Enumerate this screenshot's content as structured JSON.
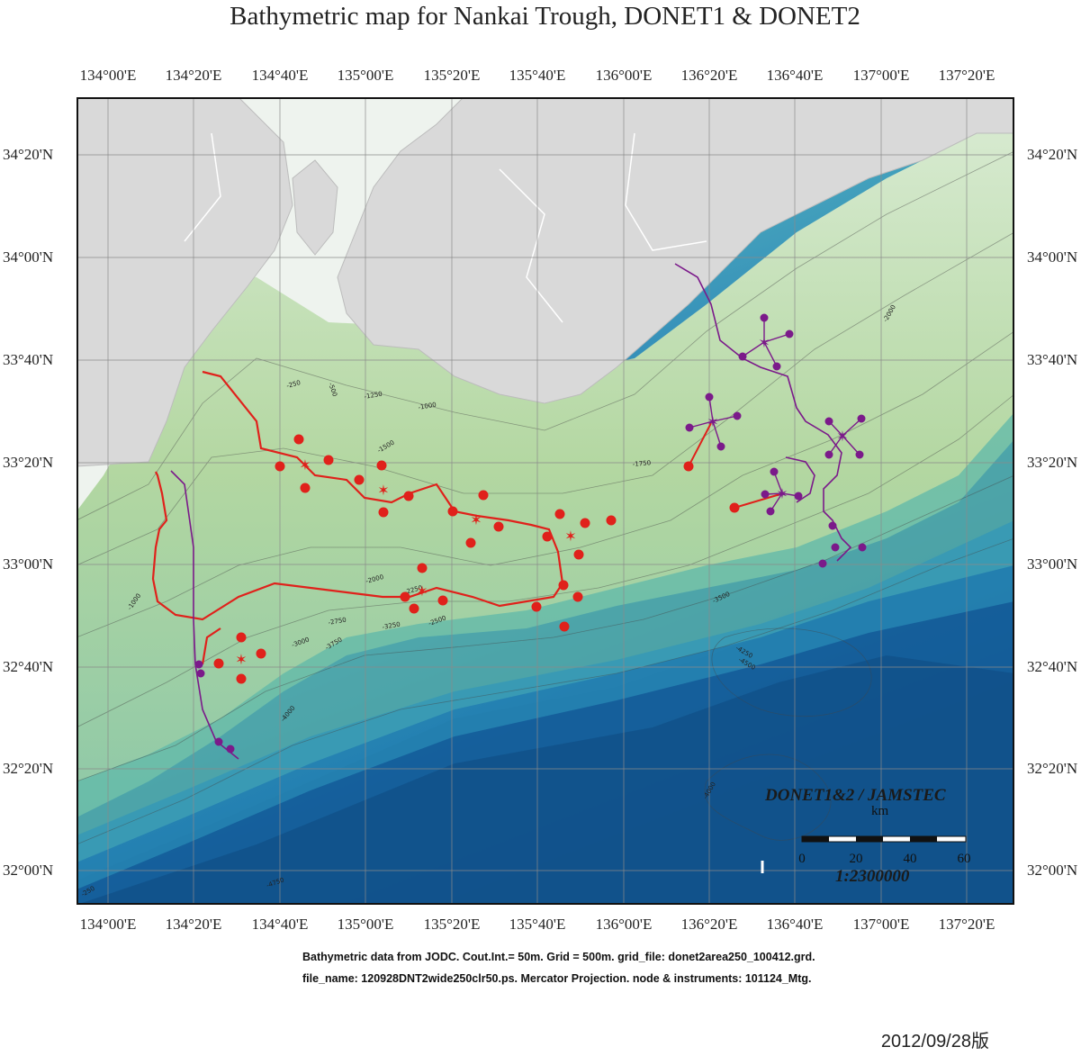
{
  "title": "Bathymetric map for Nankai Trough, DONET1 & DONET2",
  "lon_labels": [
    "134°00'E",
    "134°20'E",
    "134°40'E",
    "135°00'E",
    "135°20'E",
    "135°40'E",
    "136°00'E",
    "136°20'E",
    "136°40'E",
    "137°00'E",
    "137°20'E"
  ],
  "lat_labels": [
    "34°20'N",
    "34°00'N",
    "33°40'N",
    "33°20'N",
    "33°00'N",
    "32°40'N",
    "32°20'N",
    "32°00'N"
  ],
  "contour_labels": [
    "-250",
    "-500",
    "-1000",
    "-1250",
    "-1500",
    "-1750",
    "-2000",
    "-2250",
    "-2500",
    "-2750",
    "-3000",
    "-3250",
    "-3500",
    "-3750",
    "-4000",
    "-4250",
    "-4500",
    "-4750",
    "-250",
    "-4000",
    "-1000",
    "-2000"
  ],
  "brand": "DONET1&2 / JAMSTEC",
  "scale": {
    "unit": "km",
    "ticks": [
      "0",
      "20",
      "40",
      "60"
    ],
    "ratio": "1:2300000"
  },
  "credits": {
    "line1": "Bathymetric data from JODC. Cout.Int.= 50m. Grid = 500m.  grid_file: donet2area250_100412.grd.",
    "line2": "file_name: 120928DNT2wide250clr50.ps. Mercator Projection. node & instruments: 101124_Mtg."
  },
  "date": "2012/09/28版",
  "colors": {
    "land": "#d9d9d9",
    "shelf": "#eef3ee",
    "slope": "#b9d9a8",
    "mid": "#6fc1ad",
    "deep": "#1f74b5",
    "deepest": "#0f4f86",
    "donet1": "#e0211b",
    "donet2": "#7b1a8a"
  }
}
